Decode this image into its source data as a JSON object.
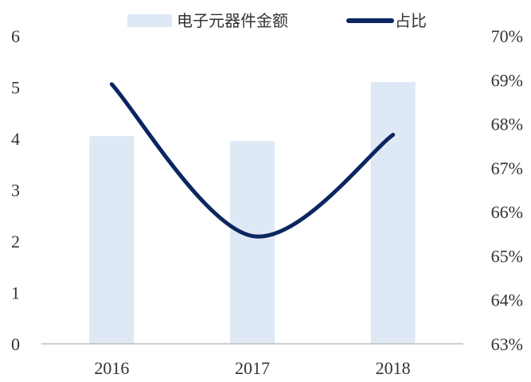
{
  "chart_data": {
    "type": "bar",
    "categories": [
      "2016",
      "2017",
      "2018"
    ],
    "series": [
      {
        "name": "电子元器件金额",
        "type": "bar",
        "axis": "left",
        "color": "#dfe9f5",
        "values": [
          4.05,
          3.95,
          5.1
        ]
      },
      {
        "name": "占比",
        "type": "line",
        "axis": "right",
        "color": "#0b2660",
        "values": [
          0.689,
          0.6545,
          0.6775
        ]
      }
    ],
    "y_left": {
      "min": 0,
      "max": 6,
      "ticks": [
        "0",
        "1",
        "2",
        "3",
        "4",
        "5",
        "6"
      ]
    },
    "y_right": {
      "min": 0.63,
      "max": 0.7,
      "ticks": [
        "63%",
        "64%",
        "65%",
        "66%",
        "67%",
        "68%",
        "69%",
        "70%"
      ]
    },
    "legend_position": "top",
    "grid": false
  }
}
